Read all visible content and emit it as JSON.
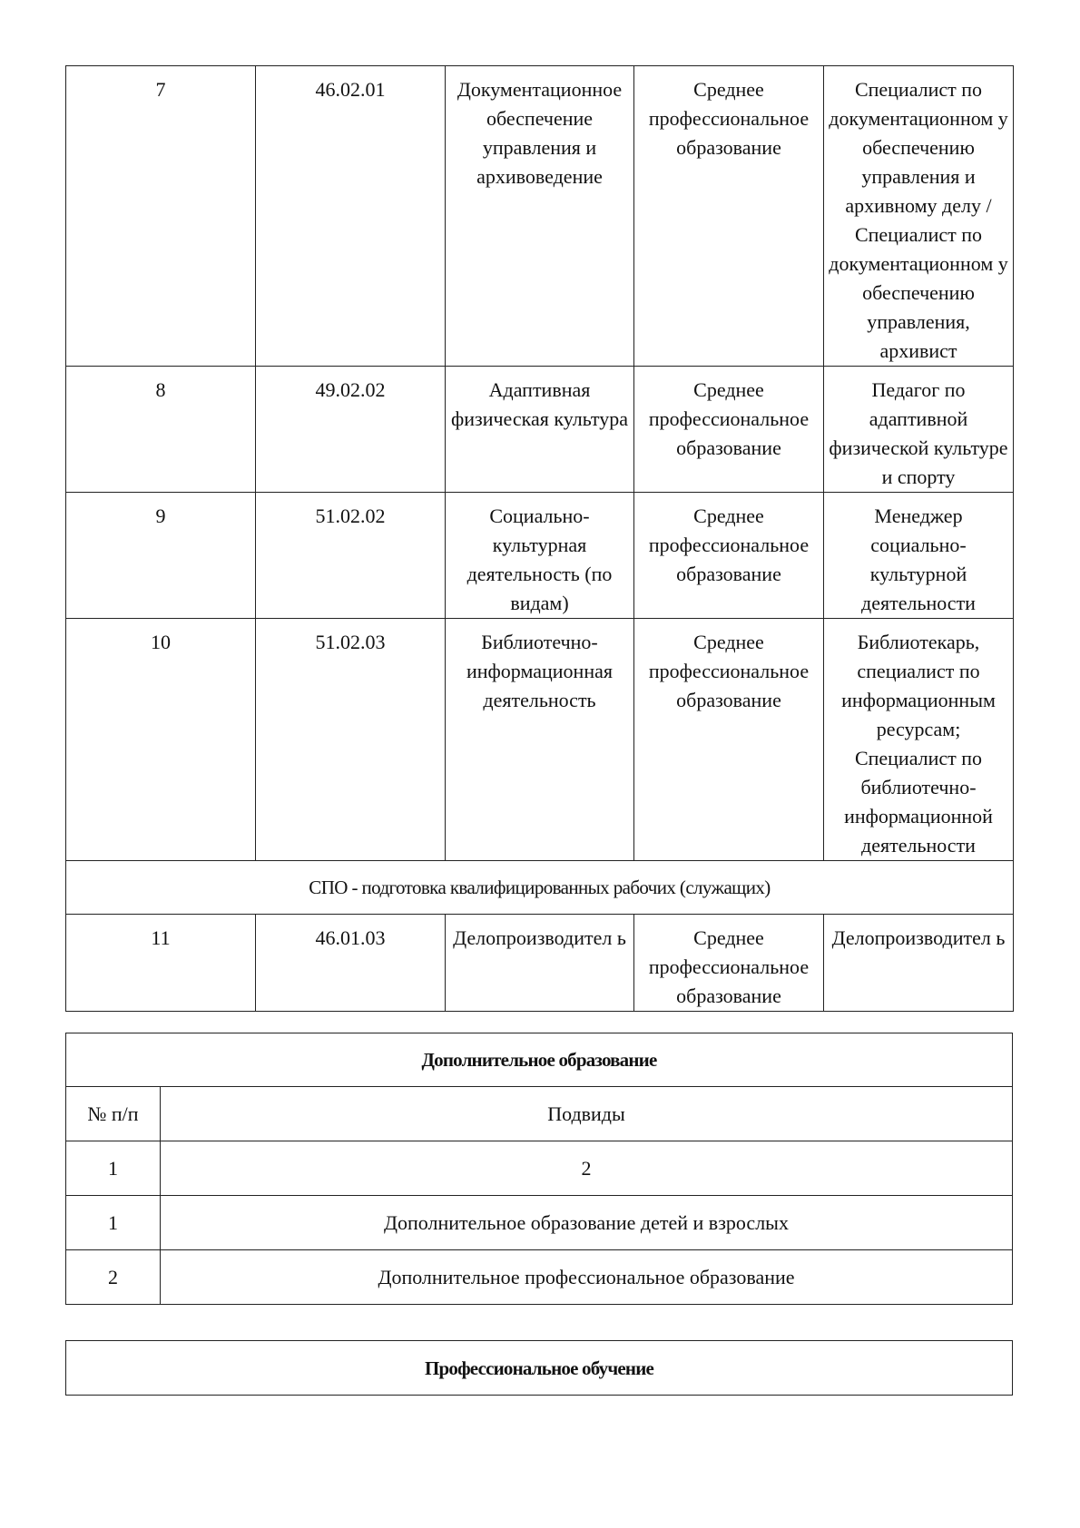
{
  "main_table": {
    "rows": [
      {
        "num": "7",
        "code": "46.02.01",
        "name": "Документационное обеспечение управления и архивоведение",
        "level": "Среднее профессиональное образование",
        "qualification": "Специалист по документационном у обеспечению управления и архивному делу / Специалист по документационном у обеспечению управления, архивист"
      },
      {
        "num": "8",
        "code": "49.02.02",
        "name": "Адаптивная физическая культура",
        "level": "Среднее профессиональное образование",
        "qualification": "Педагог по адаптивной физической культуре и спорту"
      },
      {
        "num": "9",
        "code": "51.02.02",
        "name": "Социально-культурная деятельность (по видам)",
        "level": "Среднее профессиональное образование",
        "qualification": "Менеджер социально-культурной деятельности"
      },
      {
        "num": "10",
        "code": "51.02.03",
        "name": "Библиотечно-информационная деятельность",
        "level": "Среднее профессиональное образование",
        "qualification": "Библиотекарь, специалист по информационным ресурсам; Специалист по библиотечно-информационной деятельности"
      }
    ],
    "section_title": "СПО - подготовка квалифицированных рабочих (служащих)",
    "section_rows": [
      {
        "num": "11",
        "code": "46.01.03",
        "name": "Делопроизводител ь",
        "level": "Среднее профессиональное образование",
        "qualification": "Делопроизводител ь"
      }
    ]
  },
  "additional_education": {
    "title": "Дополнительное образование",
    "headers": [
      "№ п/п",
      "Подвиды"
    ],
    "rows": [
      [
        "1",
        "2"
      ],
      [
        "1",
        "Дополнительное образование детей и взрослых"
      ],
      [
        "2",
        "Дополнительное профессиональное образование"
      ]
    ]
  },
  "professional_training": {
    "title": "Профессиональное обучение"
  }
}
